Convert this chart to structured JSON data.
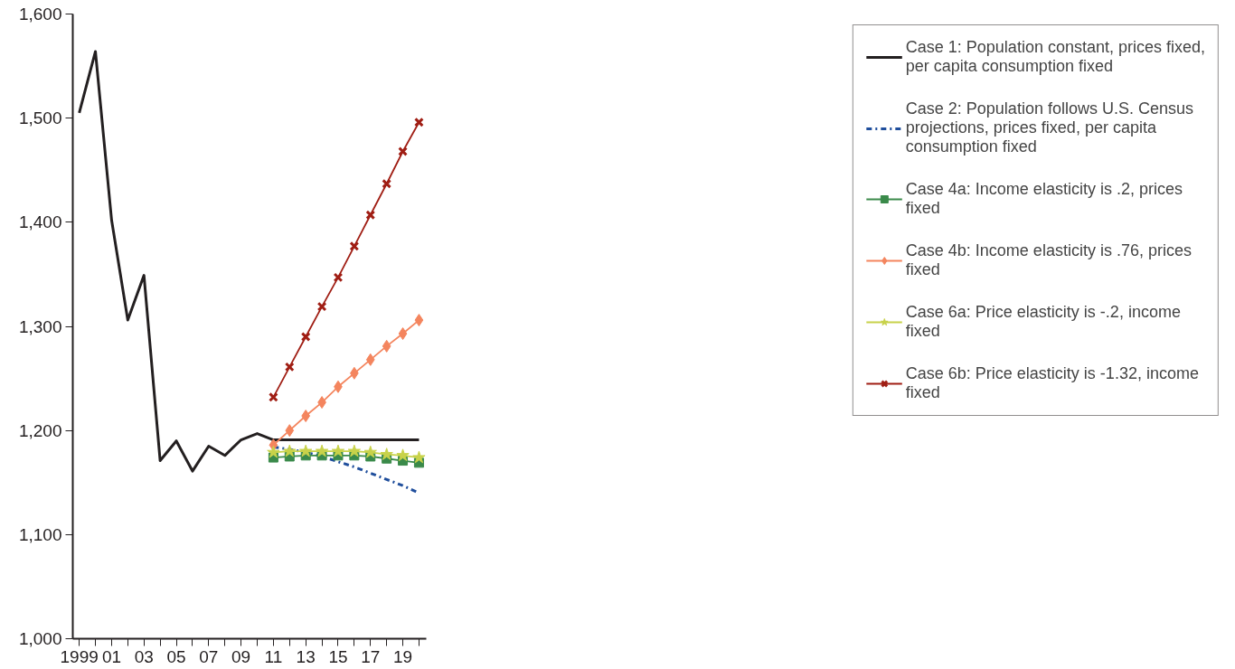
{
  "chart_data": {
    "type": "line",
    "xlim": [
      1998.6,
      2020.45
    ],
    "ylim": [
      1000,
      1600
    ],
    "xticks": [
      1999,
      {
        "value": 2000,
        "label": null
      },
      {
        "value": 2001,
        "label": "01"
      },
      {
        "value": 2002,
        "label": null
      },
      {
        "value": 2003,
        "label": "03"
      },
      {
        "value": 2004,
        "label": null
      },
      {
        "value": 2005,
        "label": "05"
      },
      {
        "value": 2006,
        "label": null
      },
      {
        "value": 2007,
        "label": "07"
      },
      {
        "value": 2008,
        "label": null
      },
      {
        "value": 2009,
        "label": "09"
      },
      {
        "value": 2010,
        "label": null
      },
      {
        "value": 2011,
        "label": "11"
      },
      {
        "value": 2012,
        "label": null
      },
      {
        "value": 2013,
        "label": "13"
      },
      {
        "value": 2014,
        "label": null
      },
      {
        "value": 2015,
        "label": "15"
      },
      {
        "value": 2016,
        "label": null
      },
      {
        "value": 2017,
        "label": "17"
      },
      {
        "value": 2018,
        "label": null
      },
      {
        "value": 2019,
        "label": "19"
      },
      {
        "value": 2020,
        "label": null
      }
    ],
    "yticks": [
      {
        "value": 1000,
        "label": "1,000"
      },
      {
        "value": 1100,
        "label": "1,100"
      },
      {
        "value": 1200,
        "label": "1,200"
      },
      {
        "value": 1300,
        "label": "1,300"
      },
      {
        "value": 1400,
        "label": "1,400"
      },
      {
        "value": 1500,
        "label": "1,500"
      },
      {
        "value": 1600,
        "label": "1,600"
      }
    ],
    "grid": false,
    "legend": "right",
    "series": [
      {
        "name": "Case 1: Population constant, prices fixed, per capita consumption fixed",
        "color": "#231f20",
        "marker": "none",
        "line_style": "solid",
        "x": [
          1999,
          2000,
          2001,
          2002,
          2003,
          2004,
          2005,
          2006,
          2007,
          2008,
          2009,
          2010,
          2011,
          2012,
          2013,
          2014,
          2015,
          2016,
          2017,
          2018,
          2019,
          2020
        ],
        "values": [
          1505,
          1564,
          1402,
          1306,
          1349,
          1171,
          1190,
          1161,
          1185,
          1176,
          1191,
          1197,
          1191,
          1191,
          1191,
          1191,
          1191,
          1191,
          1191,
          1191,
          1191,
          1191
        ]
      },
      {
        "name": "Case 2: Population follows U.S. Census projections, prices fixed, per capita consumption fixed",
        "color": "#1f4e9c",
        "marker": "none",
        "line_style": "dashdot",
        "x": [
          2011,
          2012,
          2013,
          2014,
          2015,
          2016,
          2017,
          2018,
          2019,
          2020
        ],
        "values": [
          1184,
          1182,
          1179,
          1175,
          1170,
          1165,
          1159,
          1153,
          1147,
          1140
        ]
      },
      {
        "name": "Case 4a: Income elasticity is .2, prices fixed",
        "color": "#3a8a4a",
        "marker": "square",
        "line_style": "solid",
        "x": [
          2011,
          2012,
          2013,
          2014,
          2015,
          2016,
          2017,
          2018,
          2019,
          2020
        ],
        "values": [
          1174,
          1175,
          1176,
          1176,
          1176,
          1176,
          1175,
          1173,
          1171,
          1169
        ]
      },
      {
        "name": "Case 4b: Income elasticity is .76, prices fixed",
        "color": "#f4855e",
        "marker": "diamond",
        "line_style": "solid",
        "x": [
          2011,
          2012,
          2013,
          2014,
          2015,
          2016,
          2017,
          2018,
          2019,
          2020
        ],
        "values": [
          1186,
          1200,
          1214,
          1227,
          1242,
          1255,
          1268,
          1281,
          1293,
          1306
        ]
      },
      {
        "name": "Case 6a: Price elasticity is -.2, income fixed",
        "color": "#c8d24a",
        "marker": "star",
        "line_style": "solid",
        "x": [
          2011,
          2012,
          2013,
          2014,
          2015,
          2016,
          2017,
          2018,
          2019,
          2020
        ],
        "values": [
          1179,
          1180,
          1180,
          1180,
          1180,
          1180,
          1179,
          1177,
          1176,
          1174
        ]
      },
      {
        "name": "Case 6b: Price elasticity is -1.32, income fixed",
        "color": "#a01e14",
        "marker": "cross",
        "line_style": "solid",
        "x": [
          2011,
          2012,
          2013,
          2014,
          2015,
          2016,
          2017,
          2018,
          2019,
          2020
        ],
        "values": [
          1232,
          1261,
          1290,
          1319,
          1347,
          1377,
          1407,
          1437,
          1468,
          1496
        ]
      }
    ]
  }
}
